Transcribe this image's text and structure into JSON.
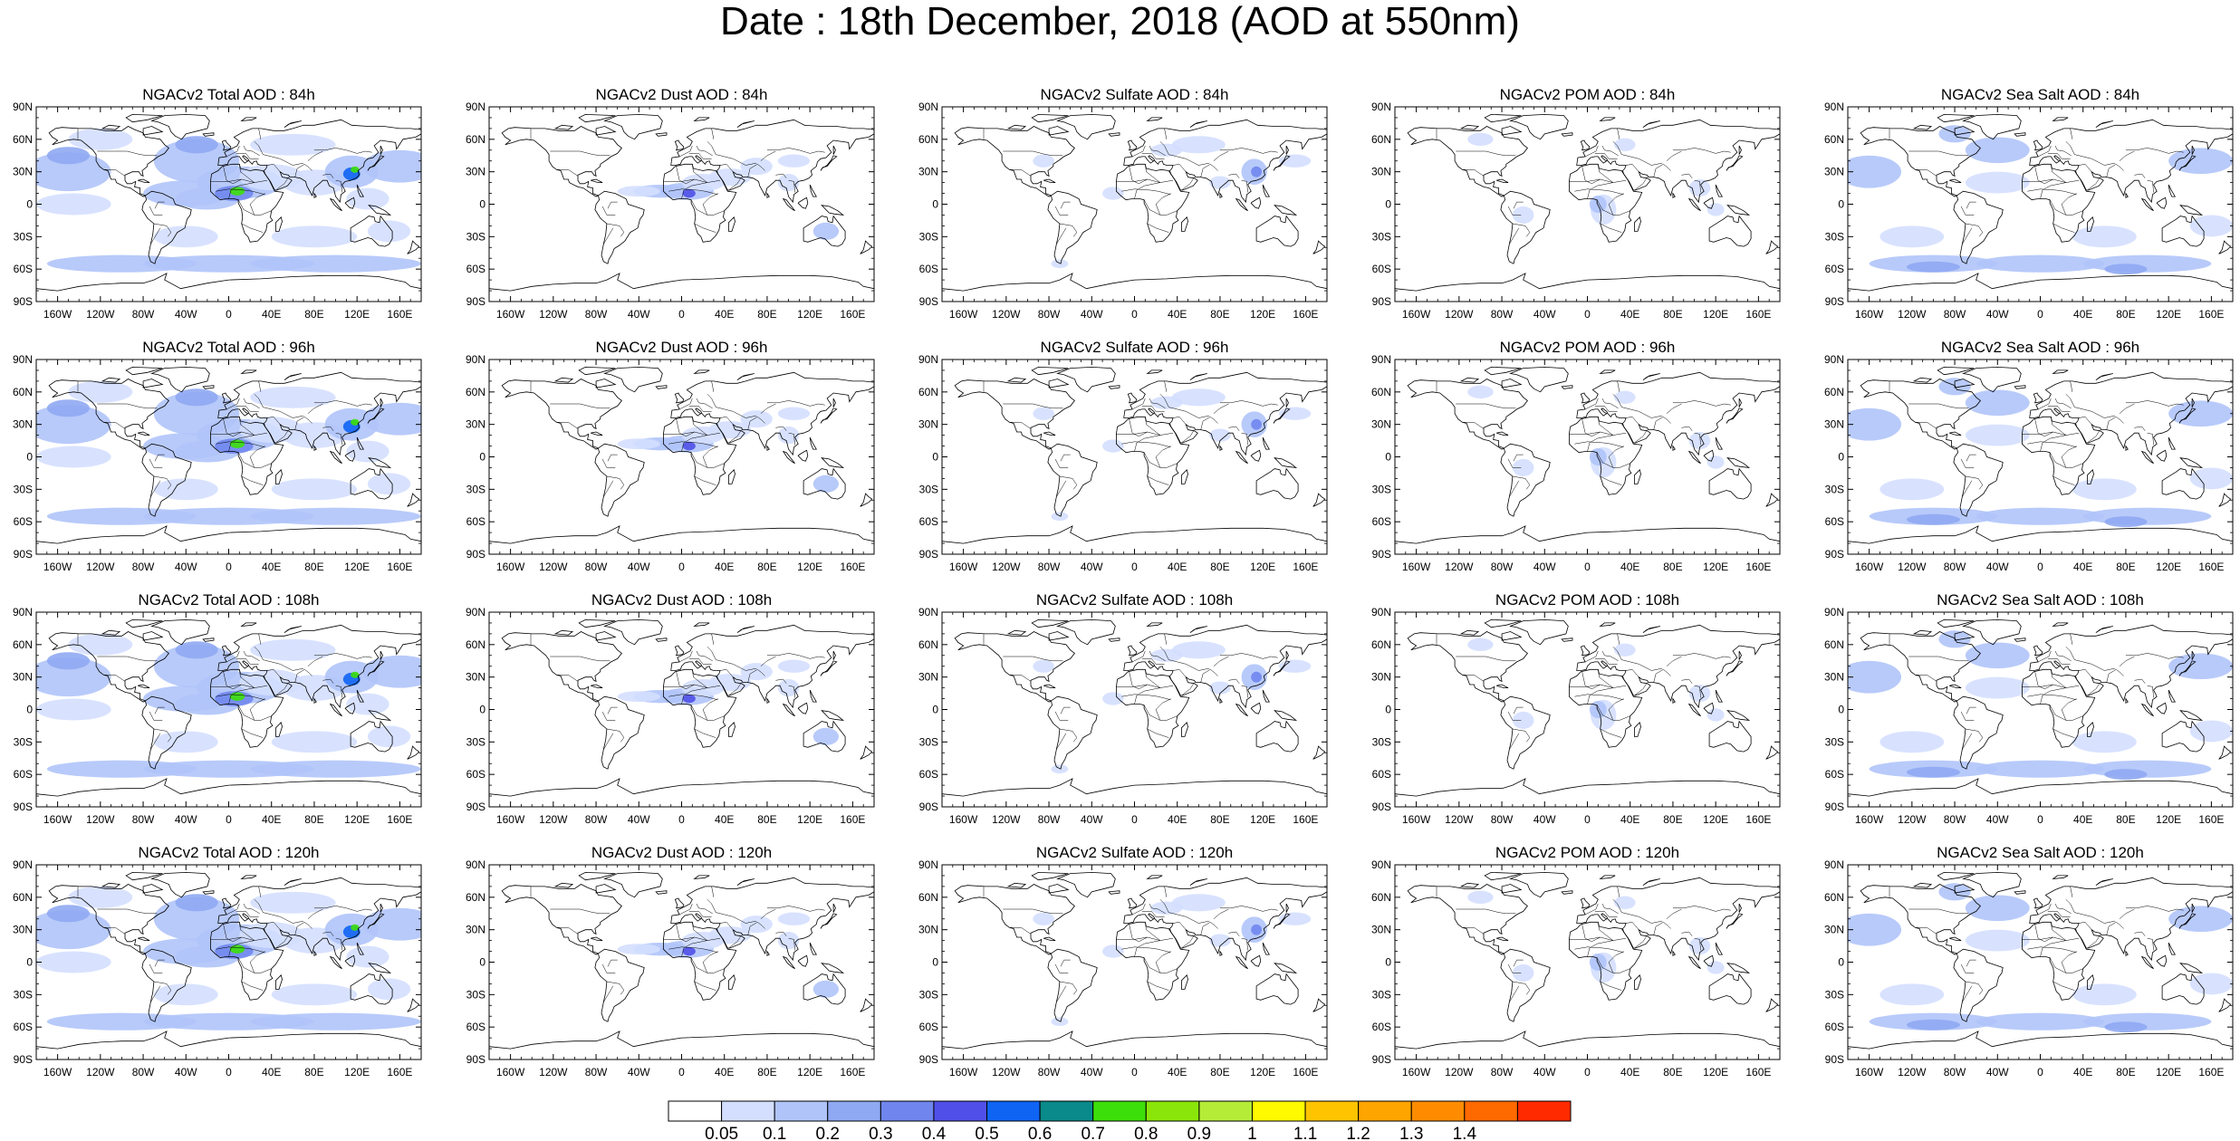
{
  "title": "Date : 18th December, 2018 (AOD at 550nm)",
  "panels": [
    [
      {
        "title": "NGACv2 Total AOD : 84h",
        "species": "total"
      },
      {
        "title": "NGACv2 Dust AOD : 84h",
        "species": "dust"
      },
      {
        "title": "NGACv2 Sulfate AOD : 84h",
        "species": "sulfate"
      },
      {
        "title": "NGACv2 POM AOD : 84h",
        "species": "pom"
      },
      {
        "title": "NGACv2 Sea Salt AOD : 84h",
        "species": "seasalt"
      }
    ],
    [
      {
        "title": "NGACv2 Total AOD : 96h",
        "species": "total"
      },
      {
        "title": "NGACv2 Dust AOD : 96h",
        "species": "dust"
      },
      {
        "title": "NGACv2 Sulfate AOD : 96h",
        "species": "sulfate"
      },
      {
        "title": "NGACv2 POM AOD : 96h",
        "species": "pom"
      },
      {
        "title": "NGACv2 Sea Salt AOD : 96h",
        "species": "seasalt"
      }
    ],
    [
      {
        "title": "NGACv2 Total AOD : 108h",
        "species": "total"
      },
      {
        "title": "NGACv2 Dust AOD : 108h",
        "species": "dust"
      },
      {
        "title": "NGACv2 Sulfate AOD : 108h",
        "species": "sulfate"
      },
      {
        "title": "NGACv2 POM AOD : 108h",
        "species": "pom"
      },
      {
        "title": "NGACv2 Sea Salt AOD : 108h",
        "species": "seasalt"
      }
    ],
    [
      {
        "title": "NGACv2 Total AOD : 120h",
        "species": "total"
      },
      {
        "title": "NGACv2 Dust AOD : 120h",
        "species": "dust"
      },
      {
        "title": "NGACv2 Sulfate AOD : 120h",
        "species": "sulfate"
      },
      {
        "title": "NGACv2 POM AOD : 120h",
        "species": "pom"
      },
      {
        "title": "NGACv2 Sea Salt  AOD : 120h",
        "species": "seasalt"
      }
    ]
  ],
  "map_axes": {
    "lat_labels": [
      "90N",
      "60N",
      "30N",
      "0",
      "30S",
      "60S",
      "90S"
    ],
    "lon_labels": [
      "160W",
      "120W",
      "80W",
      "40W",
      "0",
      "40E",
      "80E",
      "120E",
      "160E"
    ],
    "lat_range": [
      -90,
      90
    ],
    "lon_range": [
      -180,
      180
    ]
  },
  "colorbar": {
    "labels": [
      "0.05",
      "0.1",
      "0.2",
      "0.3",
      "0.4",
      "0.5",
      "0.6",
      "0.7",
      "0.8",
      "0.9",
      "1",
      "1.1",
      "1.2",
      "1.3",
      "1.4"
    ],
    "colors": [
      "#ffffff",
      "#d4dfff",
      "#b0c4fa",
      "#8fa9f2",
      "#7086ee",
      "#5050e8",
      "#0f64f4",
      "#0a8a8a",
      "#3ddf0a",
      "#8ae60a",
      "#b5ec38",
      "#fffa00",
      "#ffc400",
      "#ffa500",
      "#ff8c00",
      "#ff6a00",
      "#ff2a00"
    ]
  }
}
